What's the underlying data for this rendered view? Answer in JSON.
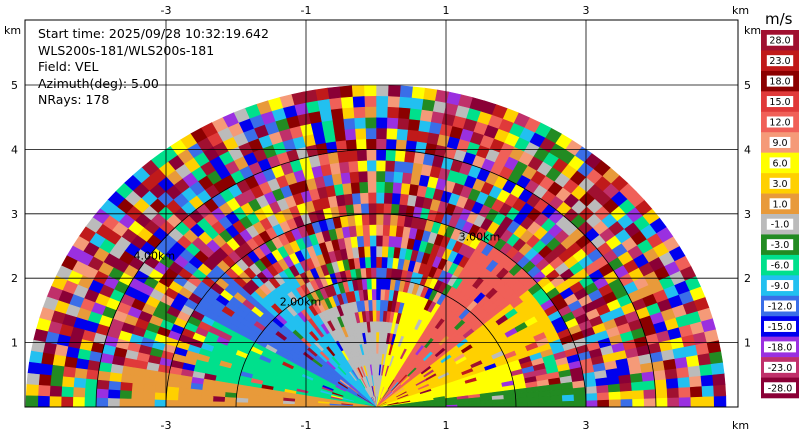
{
  "chart_data": {
    "type": "heatmap",
    "subtype": "radar-rhi-sector",
    "info": {
      "start_time": "Start time: 2025/09/28 10:32:19.642",
      "instrument": "WLS200s-181/WLS200s-181",
      "field": "Field: VEL",
      "azimuth": "Azimuth(deg): 5.00",
      "nrays": "NRays: 178"
    },
    "x_unit": "km",
    "y_unit": "km",
    "xlim": [
      -3.3,
      5.1
    ],
    "ylim": [
      0,
      5.8
    ],
    "x_ticks": [
      "-3",
      "-1",
      "1",
      "3"
    ],
    "x_tick_values": [
      -3,
      -1,
      1,
      3
    ],
    "y_ticks": [
      "1",
      "2",
      "3",
      "4",
      "5"
    ],
    "y_tick_values": [
      1,
      2,
      3,
      4,
      5
    ],
    "grid": true,
    "range_rings": [
      {
        "radius_km": 2,
        "label": "2.00km"
      },
      {
        "radius_km": 3,
        "label": "3.00km"
      },
      {
        "radius_km": 4,
        "label": "4.00km"
      }
    ],
    "colorbar": {
      "title": "m/s",
      "labels": [
        "28.0",
        "23.0",
        "18.0",
        "15.0",
        "12.0",
        "9.0",
        "6.0",
        "3.0",
        "1.0",
        "-1.0",
        "-3.0",
        "-6.0",
        "-9.0",
        "-12.0",
        "-15.0",
        "-18.0",
        "-23.0",
        "-28.0"
      ],
      "colors": [
        "#a01030",
        "#c01a1a",
        "#8b0000",
        "#e03a3a",
        "#f06058",
        "#f59a78",
        "#ffff00",
        "#ffd000",
        "#e89a3a",
        "#bbbbbb",
        "#228b22",
        "#00e08c",
        "#22c0f0",
        "#3a6ee8",
        "#0000ee",
        "#9a30e0",
        "#c0306a",
        "#8a0036"
      ]
    },
    "max_range_km": 5.0,
    "elevation_range_deg": [
      0,
      180
    ]
  }
}
